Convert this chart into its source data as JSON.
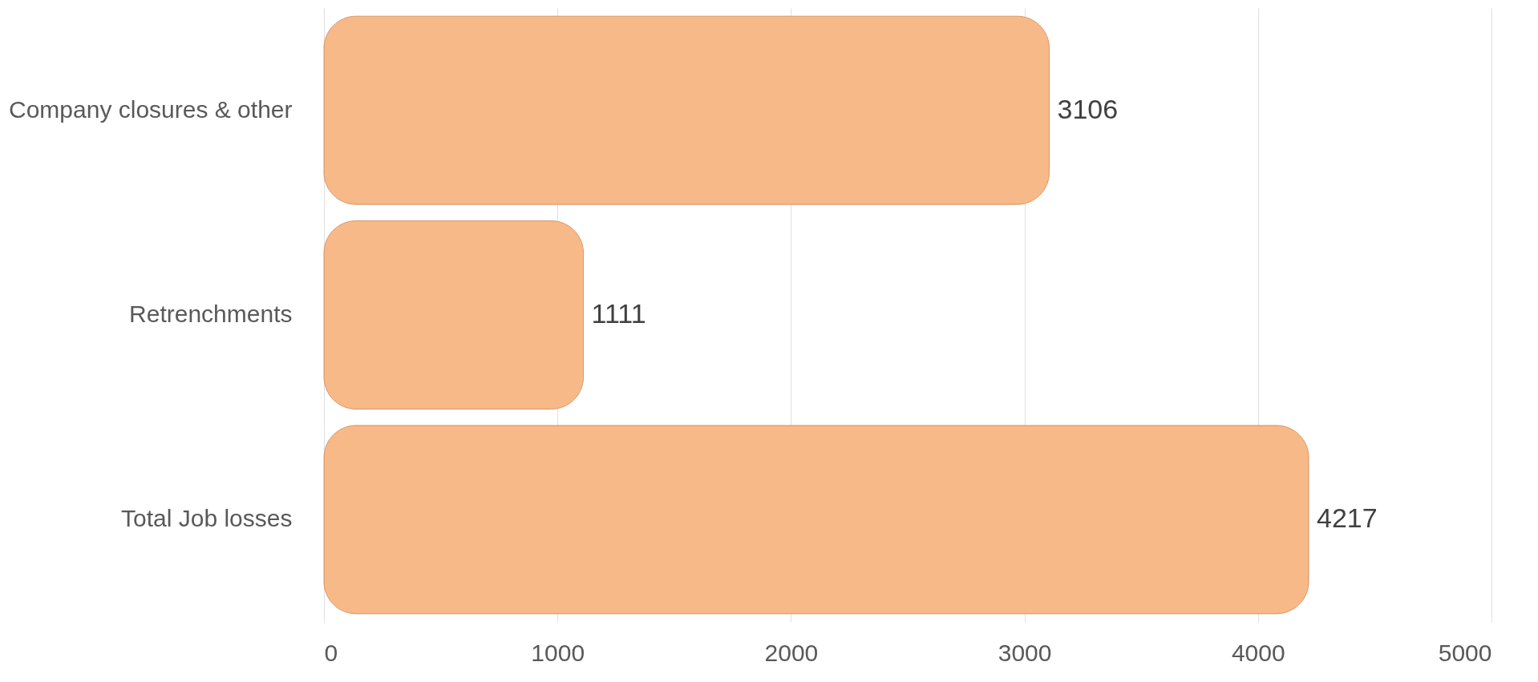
{
  "chart_data": {
    "type": "bar",
    "orientation": "horizontal",
    "categories": [
      "Company closures & other",
      "Retrenchments",
      "Total Job losses"
    ],
    "values": [
      3106,
      1111,
      4217
    ],
    "color": "#f8b988",
    "xlim": [
      0,
      5000
    ],
    "xticks": [
      0,
      1000,
      2000,
      3000,
      4000,
      5000
    ],
    "grid": "x",
    "data_labels": true
  }
}
